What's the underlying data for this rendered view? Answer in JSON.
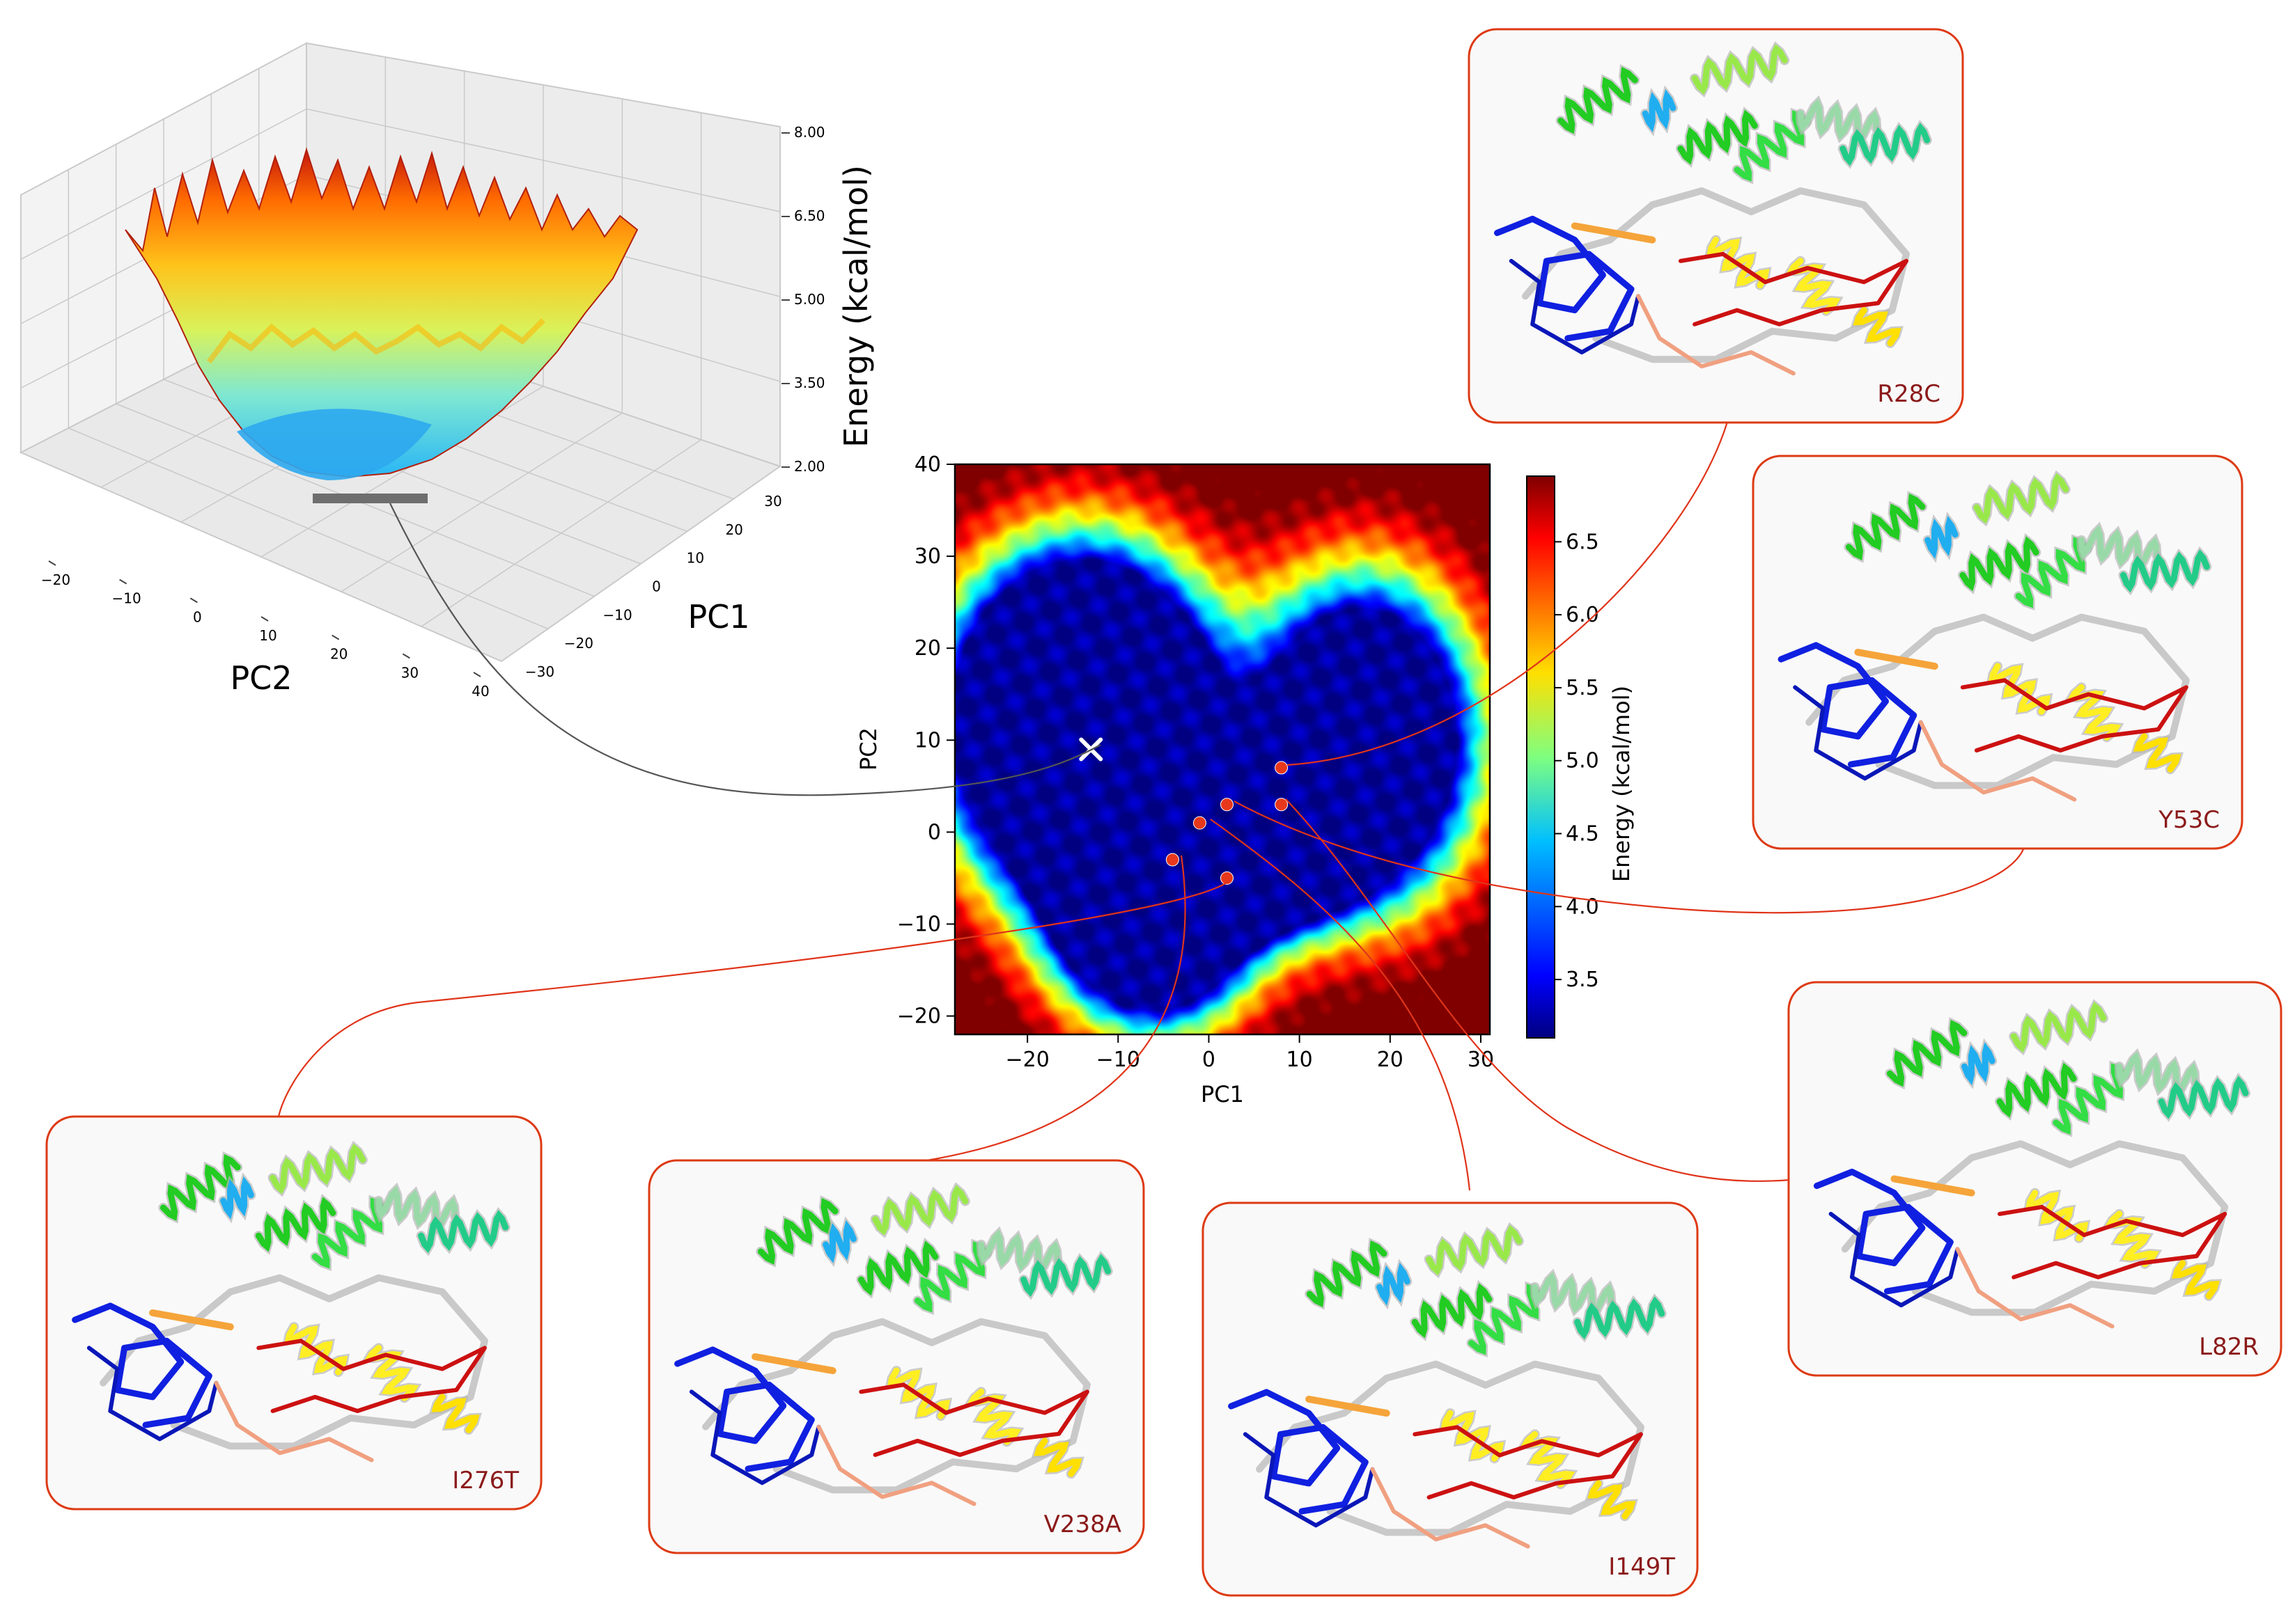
{
  "colors": {
    "frame": "#dd3a14",
    "mutant_label": "#8b1a1a",
    "panel_bg": "#f9f9f9",
    "saturated": "#800000"
  },
  "chart_data": [
    {
      "type": "surface3d",
      "xlabel": "PC2",
      "ylabel": "PC1",
      "zlabel": "Energy (kcal/mol)",
      "x_ticks": [
        "−20",
        "−10",
        "0",
        "10",
        "20",
        "30",
        "40"
      ],
      "y_ticks": [
        "−30",
        "−20",
        "−10",
        "0",
        "10",
        "20",
        "30"
      ],
      "z_ticks": [
        "2.00",
        "3.50",
        "5.00",
        "6.50",
        "8.00"
      ],
      "zlim": [
        2.0,
        8.0
      ],
      "colormap": "jet"
    },
    {
      "type": "heatmap",
      "xlabel": "PC1",
      "ylabel": "PC2",
      "xlim": [
        -28,
        31
      ],
      "ylim": [
        -22,
        40
      ],
      "x_ticks": [
        -20,
        -10,
        0,
        10,
        20,
        30
      ],
      "y_ticks": [
        -20,
        -10,
        0,
        10,
        20,
        30,
        40
      ],
      "x_tick_labels": [
        "−20",
        "−10",
        "0",
        "10",
        "20",
        "30"
      ],
      "y_tick_labels": [
        "−20",
        "−10",
        "0",
        "10",
        "20",
        "30",
        "40"
      ],
      "colorbar": {
        "label": "Energy (kcal/mol)",
        "min": 3.1,
        "max": 6.95,
        "ticks": [
          3.5,
          4.0,
          4.5,
          5.0,
          5.5,
          6.0,
          6.5
        ],
        "tick_labels": [
          "3.5",
          "4.0",
          "4.5",
          "5.0",
          "5.5",
          "6.0",
          "6.5"
        ]
      },
      "basins": [
        {
          "pc1": -14,
          "pc2": 12,
          "depth": 3.6,
          "sx": 9,
          "sy": 11
        },
        {
          "pc1": -6,
          "pc2": -8,
          "depth": 2.6,
          "sx": 7,
          "sy": 8
        },
        {
          "pc1": 17,
          "pc2": 10,
          "depth": 2.3,
          "sx": 8,
          "sy": 11
        },
        {
          "pc1": 5,
          "pc2": -3,
          "depth": 1.8,
          "sx": 7,
          "sy": 5
        }
      ],
      "global_minimum": {
        "pc1": -13,
        "pc2": 9
      },
      "mutant_points": [
        {
          "label": "R28C",
          "pc1": 8,
          "pc2": 7
        },
        {
          "label": "Y53C",
          "pc1": 2,
          "pc2": 3
        },
        {
          "label": "L82R",
          "pc1": 8,
          "pc2": 3
        },
        {
          "label": "I149T",
          "pc1": -1,
          "pc2": 1
        },
        {
          "label": "V238A",
          "pc1": -4,
          "pc2": -3
        },
        {
          "label": "I276T",
          "pc1": 2,
          "pc2": -5
        }
      ]
    }
  ],
  "panels": [
    {
      "id": "r28c",
      "label": "R28C"
    },
    {
      "id": "y53c",
      "label": "Y53C"
    },
    {
      "id": "l82r",
      "label": "L82R"
    },
    {
      "id": "i149t",
      "label": "I149T"
    },
    {
      "id": "v238a",
      "label": "V238A"
    },
    {
      "id": "i276t",
      "label": "I276T"
    }
  ]
}
